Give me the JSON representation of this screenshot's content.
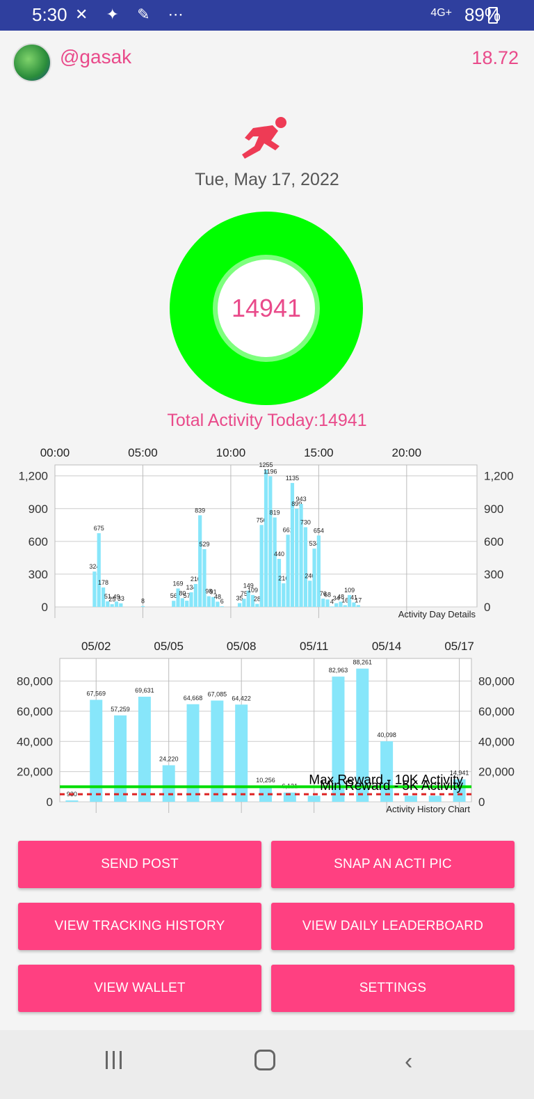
{
  "status_bar": {
    "time": "5:30",
    "icons": "✕ ✦ ✎ ⋯",
    "network": "4G+",
    "battery": "89%"
  },
  "header": {
    "username": "@gasak",
    "balance": "18.72"
  },
  "date": "Tue, May 17, 2022",
  "ring": {
    "value": "14941",
    "progress": 1.0
  },
  "total_label": "Total Activity Today:14941",
  "colors": {
    "accent": "#e94a8a",
    "button": "#ff4081",
    "ring": "#00ff00",
    "bar": "#87e6fa",
    "max_line": "#00dd00",
    "min_line": "#dd2222"
  },
  "chart_data": [
    {
      "type": "bar",
      "title": "Activity Day Details",
      "x_ticks": [
        "00:00",
        "05:00",
        "10:00",
        "15:00",
        "20:00"
      ],
      "y_ticks": [
        "0",
        "300",
        "600",
        "900",
        "1,200"
      ],
      "ylim": [
        0,
        1300
      ],
      "x_unit": "hour",
      "bars": [
        {
          "x": 2.25,
          "y": 324,
          "label": "324"
        },
        {
          "x": 2.5,
          "y": 675,
          "label": "675"
        },
        {
          "x": 2.75,
          "y": 178,
          "label": "178"
        },
        {
          "x": 3.0,
          "y": 51,
          "label": "51"
        },
        {
          "x": 3.25,
          "y": 25,
          "label": "25"
        },
        {
          "x": 3.5,
          "y": 49,
          "label": "49"
        },
        {
          "x": 3.75,
          "y": 33,
          "label": "33"
        },
        {
          "x": 5.0,
          "y": 8,
          "label": "8"
        },
        {
          "x": 6.75,
          "y": 56,
          "label": "56"
        },
        {
          "x": 7.0,
          "y": 169,
          "label": "169"
        },
        {
          "x": 7.25,
          "y": 80,
          "label": "80"
        },
        {
          "x": 7.5,
          "y": 57,
          "label": "57"
        },
        {
          "x": 7.75,
          "y": 134,
          "label": "134"
        },
        {
          "x": 8.0,
          "y": 210,
          "label": "210"
        },
        {
          "x": 8.25,
          "y": 839,
          "label": "839"
        },
        {
          "x": 8.5,
          "y": 529,
          "label": "529"
        },
        {
          "x": 8.75,
          "y": 98,
          "label": "98"
        },
        {
          "x": 9.0,
          "y": 91,
          "label": "91"
        },
        {
          "x": 9.25,
          "y": 48,
          "label": "48"
        },
        {
          "x": 9.5,
          "y": 6,
          "label": "6"
        },
        {
          "x": 10.5,
          "y": 35,
          "label": "35"
        },
        {
          "x": 10.75,
          "y": 75,
          "label": "75"
        },
        {
          "x": 11.0,
          "y": 149,
          "label": "149"
        },
        {
          "x": 11.25,
          "y": 109,
          "label": "109"
        },
        {
          "x": 11.5,
          "y": 28,
          "label": "28"
        },
        {
          "x": 11.75,
          "y": 750,
          "label": "750"
        },
        {
          "x": 12.0,
          "y": 1255,
          "label": "1255"
        },
        {
          "x": 12.25,
          "y": 1196,
          "label": "1196"
        },
        {
          "x": 12.5,
          "y": 819,
          "label": "819"
        },
        {
          "x": 12.75,
          "y": 440,
          "label": "440"
        },
        {
          "x": 13.0,
          "y": 216,
          "label": "216"
        },
        {
          "x": 13.25,
          "y": 661,
          "label": "661"
        },
        {
          "x": 13.5,
          "y": 1135,
          "label": "1135"
        },
        {
          "x": 13.75,
          "y": 899,
          "label": "899"
        },
        {
          "x": 14.0,
          "y": 943,
          "label": "943"
        },
        {
          "x": 14.25,
          "y": 730,
          "label": "730"
        },
        {
          "x": 14.5,
          "y": 240,
          "label": "240"
        },
        {
          "x": 14.75,
          "y": 534,
          "label": "534"
        },
        {
          "x": 15.0,
          "y": 654,
          "label": "654"
        },
        {
          "x": 15.25,
          "y": 76,
          "label": "76"
        },
        {
          "x": 15.5,
          "y": 68,
          "label": "68"
        },
        {
          "x": 15.75,
          "y": 4,
          "label": "4"
        },
        {
          "x": 16.0,
          "y": 34,
          "label": "34"
        },
        {
          "x": 16.25,
          "y": 48,
          "label": "48"
        },
        {
          "x": 16.5,
          "y": 16,
          "label": "16"
        },
        {
          "x": 16.75,
          "y": 109,
          "label": "109"
        },
        {
          "x": 17.0,
          "y": 41,
          "label": "41"
        },
        {
          "x": 17.25,
          "y": 17,
          "label": "17"
        }
      ]
    },
    {
      "type": "bar",
      "title": "Activity History Chart",
      "x_ticks": [
        "05/02",
        "05/05",
        "05/08",
        "05/11",
        "05/14",
        "05/17"
      ],
      "y_ticks": [
        "0",
        "20,000",
        "40,000",
        "60,000",
        "80,000"
      ],
      "ylim": [
        0,
        95000
      ],
      "categories": [
        "05/01",
        "05/02",
        "05/03",
        "05/04",
        "05/05",
        "05/06",
        "05/07",
        "05/08",
        "05/09",
        "05/10",
        "05/11",
        "05/12",
        "05/13",
        "05/14",
        "05/15",
        "05/16",
        "05/17"
      ],
      "values": [
        930,
        67569,
        57259,
        69631,
        24220,
        64668,
        67085,
        64422,
        10256,
        6121,
        4000,
        82963,
        88261,
        40098,
        4000,
        4000,
        14941
      ],
      "value_labels": [
        "930",
        "67,569",
        "57,259",
        "69,631",
        "24,220",
        "64,668",
        "67,085",
        "64,422",
        "10,256",
        "6,121",
        "",
        "82,963",
        "88,261",
        "40,098",
        "",
        "",
        "14,941"
      ],
      "reference_lines": [
        {
          "name": "Max Reward - 10K Activity",
          "value": 10000,
          "style": "solid"
        },
        {
          "name": "Min Reward - 5K Activity",
          "value": 5000,
          "style": "dashed"
        }
      ]
    }
  ],
  "buttons": {
    "send_post": "SEND POST",
    "snap_pic": "SNAP AN ACTI PIC",
    "tracking_history": "VIEW TRACKING HISTORY",
    "daily_leaderboard": "VIEW DAILY LEADERBOARD",
    "wallet": "VIEW WALLET",
    "settings": "SETTINGS"
  }
}
